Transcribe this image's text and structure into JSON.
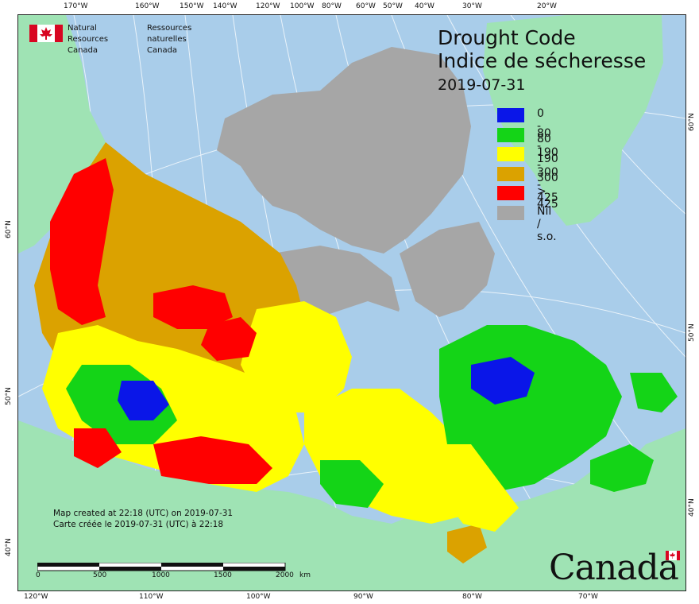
{
  "org": {
    "name_en_1": "Natural Resources",
    "name_en_2": "Canada",
    "name_fr_1": "Ressources naturelles",
    "name_fr_2": "Canada"
  },
  "title": {
    "en": "Drought Code",
    "fr": "Indice de sécheresse",
    "date": "2019-07-31"
  },
  "legend": [
    {
      "label": "0 - 80",
      "color": "#0a16e8"
    },
    {
      "label": "80 - 190",
      "color": "#14d417"
    },
    {
      "label": "190 - 300",
      "color": "#ffff00"
    },
    {
      "label": "300 - 425",
      "color": "#dba200"
    },
    {
      "label": "> 425",
      "color": "#ff0000"
    },
    {
      "label": "Nil / s.o.",
      "color": "#a6a6a6"
    }
  ],
  "credit": {
    "line_en": "Map created at 22:18 (UTC) on 2019-07-31",
    "line_fr": "Carte créée le 2019-07-31 (UTC) à 22:18"
  },
  "scale": {
    "labels": [
      "0",
      "500",
      "1000",
      "1500",
      "2000"
    ],
    "unit": "km"
  },
  "wordmark": "Canada",
  "graticule": {
    "top": [
      "170°W",
      "160°W",
      "150°W",
      "140°W",
      "120°W",
      "100°W",
      "80°W",
      "60°W",
      "50°W",
      "40°W",
      "30°W",
      "20°W"
    ],
    "bottom": [
      "120°W",
      "110°W",
      "100°W",
      "90°W",
      "80°W",
      "70°W"
    ],
    "left": [
      "60°N",
      "50°N",
      "40°N"
    ],
    "right": [
      "60°N",
      "50°N",
      "40°N"
    ]
  },
  "colors": {
    "ocean": "#a9cdea",
    "land_outside": "#9fe3b4",
    "nil": "#a6a6a6"
  }
}
